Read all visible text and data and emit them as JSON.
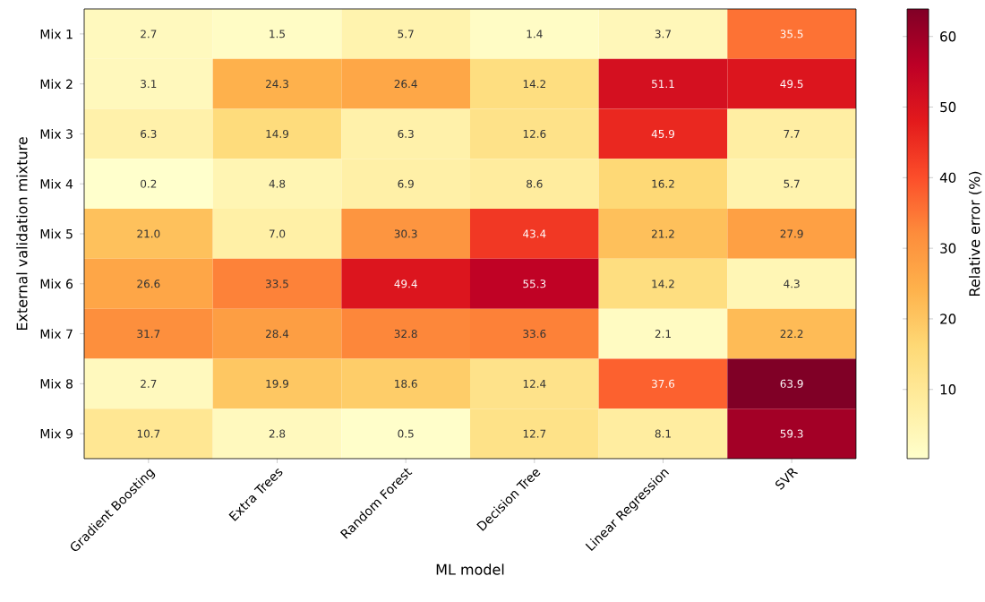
{
  "chart_data": {
    "type": "heatmap",
    "xlabel": "ML model",
    "ylabel": "External validation mixture",
    "clabel": "Relative error (%)",
    "categories": [
      "Gradient Boosting",
      "Extra Trees",
      "Random Forest",
      "Decision Tree",
      "Linear Regression",
      "SVR"
    ],
    "y_categories": [
      "Mix 1",
      "Mix 2",
      "Mix 3",
      "Mix 4",
      "Mix 5",
      "Mix 6",
      "Mix 7",
      "Mix 8",
      "Mix 9"
    ],
    "cells": [
      [
        2.7,
        1.5,
        5.7,
        1.4,
        3.7,
        35.5
      ],
      [
        3.1,
        24.3,
        26.4,
        14.2,
        51.1,
        49.5
      ],
      [
        6.3,
        14.9,
        6.3,
        12.6,
        45.9,
        7.7
      ],
      [
        0.2,
        4.8,
        6.9,
        8.6,
        16.2,
        5.7
      ],
      [
        21.0,
        7.0,
        30.3,
        43.4,
        21.2,
        27.9
      ],
      [
        26.6,
        33.5,
        49.4,
        55.3,
        14.2,
        4.3
      ],
      [
        31.7,
        28.4,
        32.8,
        33.6,
        2.1,
        22.2
      ],
      [
        2.7,
        19.9,
        18.6,
        12.4,
        37.6,
        63.9
      ],
      [
        10.7,
        2.8,
        0.5,
        12.7,
        8.1,
        59.3
      ]
    ],
    "cell_labels": [
      [
        "2.7",
        "1.5",
        "5.7",
        "1.4",
        "3.7",
        "35.5"
      ],
      [
        "3.1",
        "24.3",
        "26.4",
        "14.2",
        "51.1",
        "49.5"
      ],
      [
        "6.3",
        "14.9",
        "6.3",
        "12.6",
        "45.9",
        "7.7"
      ],
      [
        "0.2",
        "4.8",
        "6.9",
        "8.6",
        "16.2",
        "5.7"
      ],
      [
        "21.0",
        "7.0",
        "30.3",
        "43.4",
        "21.2",
        "27.9"
      ],
      [
        "26.6",
        "33.5",
        "49.4",
        "55.3",
        "14.2",
        "4.3"
      ],
      [
        "31.7",
        "28.4",
        "32.8",
        "33.6",
        "2.1",
        "22.2"
      ],
      [
        "2.7",
        "19.9",
        "18.6",
        "12.4",
        "37.6",
        "63.9"
      ],
      [
        "10.7",
        "2.8",
        "0.5",
        "12.7",
        "8.1",
        "59.3"
      ]
    ],
    "clim": [
      0.2,
      63.9
    ],
    "cticks": [
      10,
      20,
      30,
      40,
      50,
      60
    ],
    "data_labels": true
  }
}
